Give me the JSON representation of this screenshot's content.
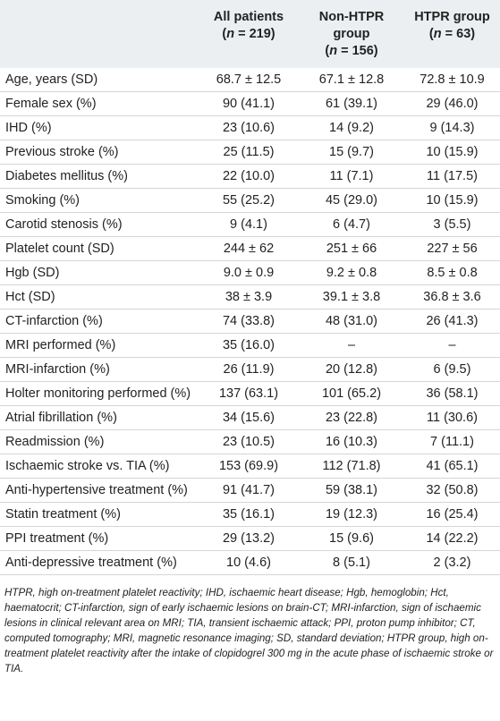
{
  "header": {
    "col0": "",
    "col1_line1": "All patients",
    "col1_line2": "(n = 219)",
    "col2_line1": "Non-HTPR",
    "col2_line2": "group",
    "col2_line3": "(n = 156)",
    "col3_line1": "HTPR group",
    "col3_line2": "(n = 63)"
  },
  "rows": [
    {
      "label": "Age, years (SD)",
      "all": "68.7 ± 12.5",
      "non": "67.1 ± 12.8",
      "htpr": "72.8 ± 10.9"
    },
    {
      "label": "Female sex (%)",
      "all": "90 (41.1)",
      "non": "61 (39.1)",
      "htpr": "29 (46.0)"
    },
    {
      "label": "IHD (%)",
      "all": "23 (10.6)",
      "non": "14 (9.2)",
      "htpr": "9 (14.3)"
    },
    {
      "label": "Previous stroke (%)",
      "all": "25 (11.5)",
      "non": "15 (9.7)",
      "htpr": "10 (15.9)"
    },
    {
      "label": "Diabetes mellitus (%)",
      "all": "22 (10.0)",
      "non": "11 (7.1)",
      "htpr": "11 (17.5)"
    },
    {
      "label": "Smoking (%)",
      "all": "55 (25.2)",
      "non": "45 (29.0)",
      "htpr": "10 (15.9)"
    },
    {
      "label": "Carotid stenosis (%)",
      "all": "9 (4.1)",
      "non": "6 (4.7)",
      "htpr": "3 (5.5)"
    },
    {
      "label": "Platelet count (SD)",
      "all": "244 ± 62",
      "non": "251 ± 66",
      "htpr": "227 ± 56"
    },
    {
      "label": "Hgb (SD)",
      "all": "9.0 ± 0.9",
      "non": "9.2 ± 0.8",
      "htpr": "8.5 ± 0.8"
    },
    {
      "label": "Hct (SD)",
      "all": "38 ± 3.9",
      "non": "39.1 ± 3.8",
      "htpr": "36.8 ± 3.6"
    },
    {
      "label": "CT-infarction (%)",
      "all": "74 (33.8)",
      "non": "48 (31.0)",
      "htpr": "26 (41.3)"
    },
    {
      "label": "MRI performed (%)",
      "all": "35 (16.0)",
      "non": "–",
      "htpr": "–"
    },
    {
      "label": "MRI-infarction (%)",
      "all": "26 (11.9)",
      "non": "20 (12.8)",
      "htpr": "6 (9.5)"
    },
    {
      "label": "Holter monitoring performed (%)",
      "all": "137 (63.1)",
      "non": "101 (65.2)",
      "htpr": "36 (58.1)"
    },
    {
      "label": "Atrial fibrillation (%)",
      "all": "34 (15.6)",
      "non": "23 (22.8)",
      "htpr": "11 (30.6)"
    },
    {
      "label": "Readmission (%)",
      "all": "23 (10.5)",
      "non": "16 (10.3)",
      "htpr": "7 (11.1)"
    },
    {
      "label": "Ischaemic stroke vs. TIA (%)",
      "all": "153 (69.9)",
      "non": "112 (71.8)",
      "htpr": "41 (65.1)"
    },
    {
      "label": "Anti-hypertensive treatment (%)",
      "all": "91 (41.7)",
      "non": "59 (38.1)",
      "htpr": "32 (50.8)"
    },
    {
      "label": "Statin treatment (%)",
      "all": "35 (16.1)",
      "non": "19 (12.3)",
      "htpr": "16 (25.4)"
    },
    {
      "label": "PPI treatment (%)",
      "all": "29 (13.2)",
      "non": "15 (9.6)",
      "htpr": "14 (22.2)"
    },
    {
      "label": "Anti-depressive treatment (%)",
      "all": "10 (4.6)",
      "non": "8 (5.1)",
      "htpr": "2 (3.2)"
    }
  ],
  "footnote": "HTPR, high on-treatment platelet reactivity; IHD, ischaemic heart disease; Hgb, hemoglobin; Hct, haematocrit; CT-infarction, sign of early ischaemic lesions on brain-CT; MRI-infarction, sign of ischaemic lesions in clinical relevant area on MRI; TIA, transient ischaemic attack; PPI, proton pump inhibitor; CT, computed tomography; MRI, magnetic resonance imaging; SD, standard deviation; HTPR group, high on-treatment platelet reactivity after the intake of clopidogrel 300 mg in the acute phase of ischaemic stroke or TIA."
}
